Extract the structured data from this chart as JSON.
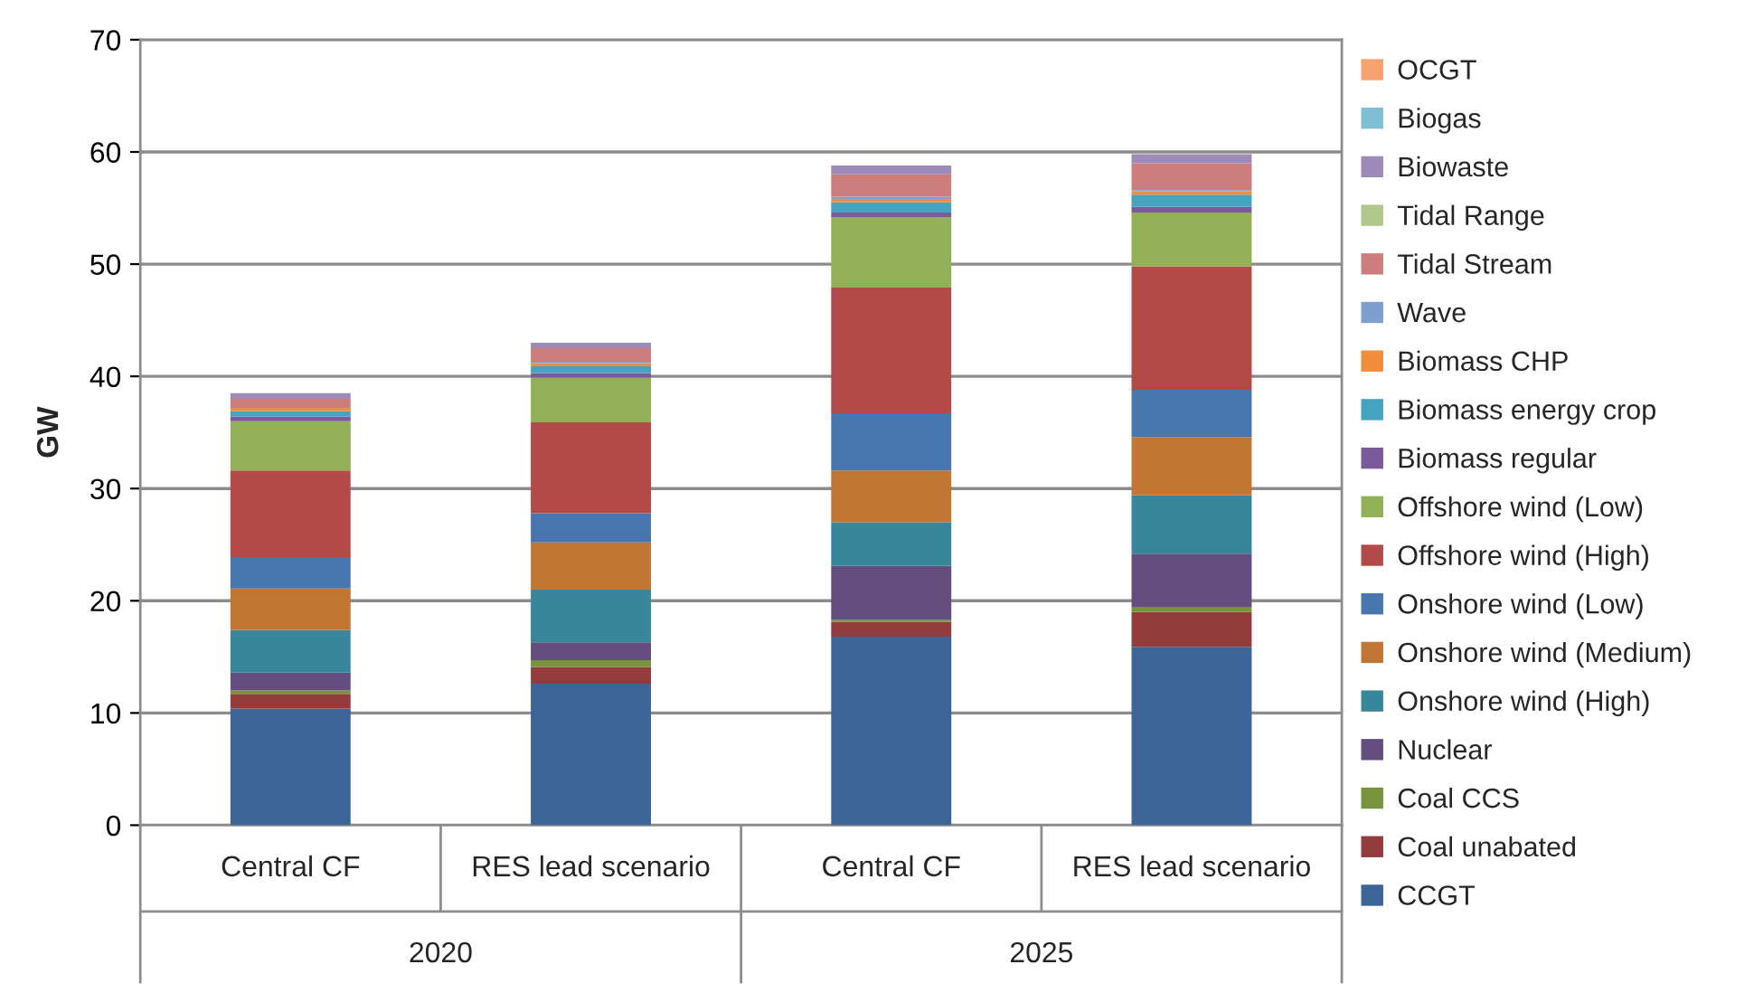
{
  "chart_data": {
    "type": "bar",
    "stacked": true,
    "ylabel": "GW",
    "categories": [
      "Central CF",
      "RES lead scenario",
      "Central CF",
      "RES lead scenario"
    ],
    "annotations": [
      "2020",
      "2025"
    ],
    "ylim": [
      0,
      70
    ],
    "yticks": [
      0,
      10,
      20,
      30,
      40,
      50,
      60,
      70
    ],
    "grid": "y",
    "legend": "right",
    "series": [
      {
        "name": "CCGT",
        "color": "#3c6496",
        "values": [
          10.4,
          12.6,
          16.8,
          15.9
        ]
      },
      {
        "name": "Coal unabated",
        "color": "#943c3b",
        "values": [
          1.3,
          1.5,
          1.3,
          3.1
        ]
      },
      {
        "name": "Coal CCS",
        "color": "#77933c",
        "values": [
          0.3,
          0.6,
          0.2,
          0.4
        ]
      },
      {
        "name": "Nuclear",
        "color": "#634e7e",
        "values": [
          1.6,
          1.6,
          4.8,
          4.8
        ]
      },
      {
        "name": "Onshore wind (High)",
        "color": "#378699",
        "values": [
          3.8,
          4.7,
          3.9,
          5.2
        ]
      },
      {
        "name": "Onshore wind (Medium)",
        "color": "#c27634",
        "values": [
          3.7,
          4.2,
          4.6,
          5.2
        ]
      },
      {
        "name": "Onshore wind (Low)",
        "color": "#4877b0",
        "values": [
          2.8,
          2.6,
          5.1,
          4.2
        ]
      },
      {
        "name": "Offshore wind (High)",
        "color": "#b24a48",
        "values": [
          7.7,
          8.1,
          11.2,
          11.0
        ]
      },
      {
        "name": "Offshore wind (Low)",
        "color": "#92b055",
        "values": [
          4.4,
          4.0,
          6.3,
          4.8
        ]
      },
      {
        "name": "Biomass regular",
        "color": "#7a5a9a",
        "values": [
          0.4,
          0.4,
          0.4,
          0.5
        ]
      },
      {
        "name": "Biomass energy crop",
        "color": "#46a3bd",
        "values": [
          0.5,
          0.6,
          0.9,
          1.1
        ]
      },
      {
        "name": "Biomass CHP",
        "color": "#f18e3d",
        "values": [
          0.3,
          0.3,
          0.3,
          0.3
        ]
      },
      {
        "name": "Wave",
        "color": "#7f9fcf",
        "values": [
          0,
          0.1,
          0.2,
          0.1
        ]
      },
      {
        "name": "Tidal Stream",
        "color": "#cc7d7c",
        "values": [
          0.8,
          1.2,
          2.0,
          2.4
        ]
      },
      {
        "name": "Tidal Range",
        "color": "#afc88a",
        "values": [
          0,
          0,
          0,
          0
        ]
      },
      {
        "name": "Biowaste",
        "color": "#9d8ab8",
        "values": [
          0.5,
          0.5,
          0.8,
          0.8
        ]
      },
      {
        "name": "Biogas",
        "color": "#7fbfd3",
        "values": [
          0,
          0,
          0,
          0
        ]
      },
      {
        "name": "OCGT",
        "color": "#f7a26f",
        "values": [
          0,
          0,
          0,
          0
        ]
      }
    ]
  }
}
